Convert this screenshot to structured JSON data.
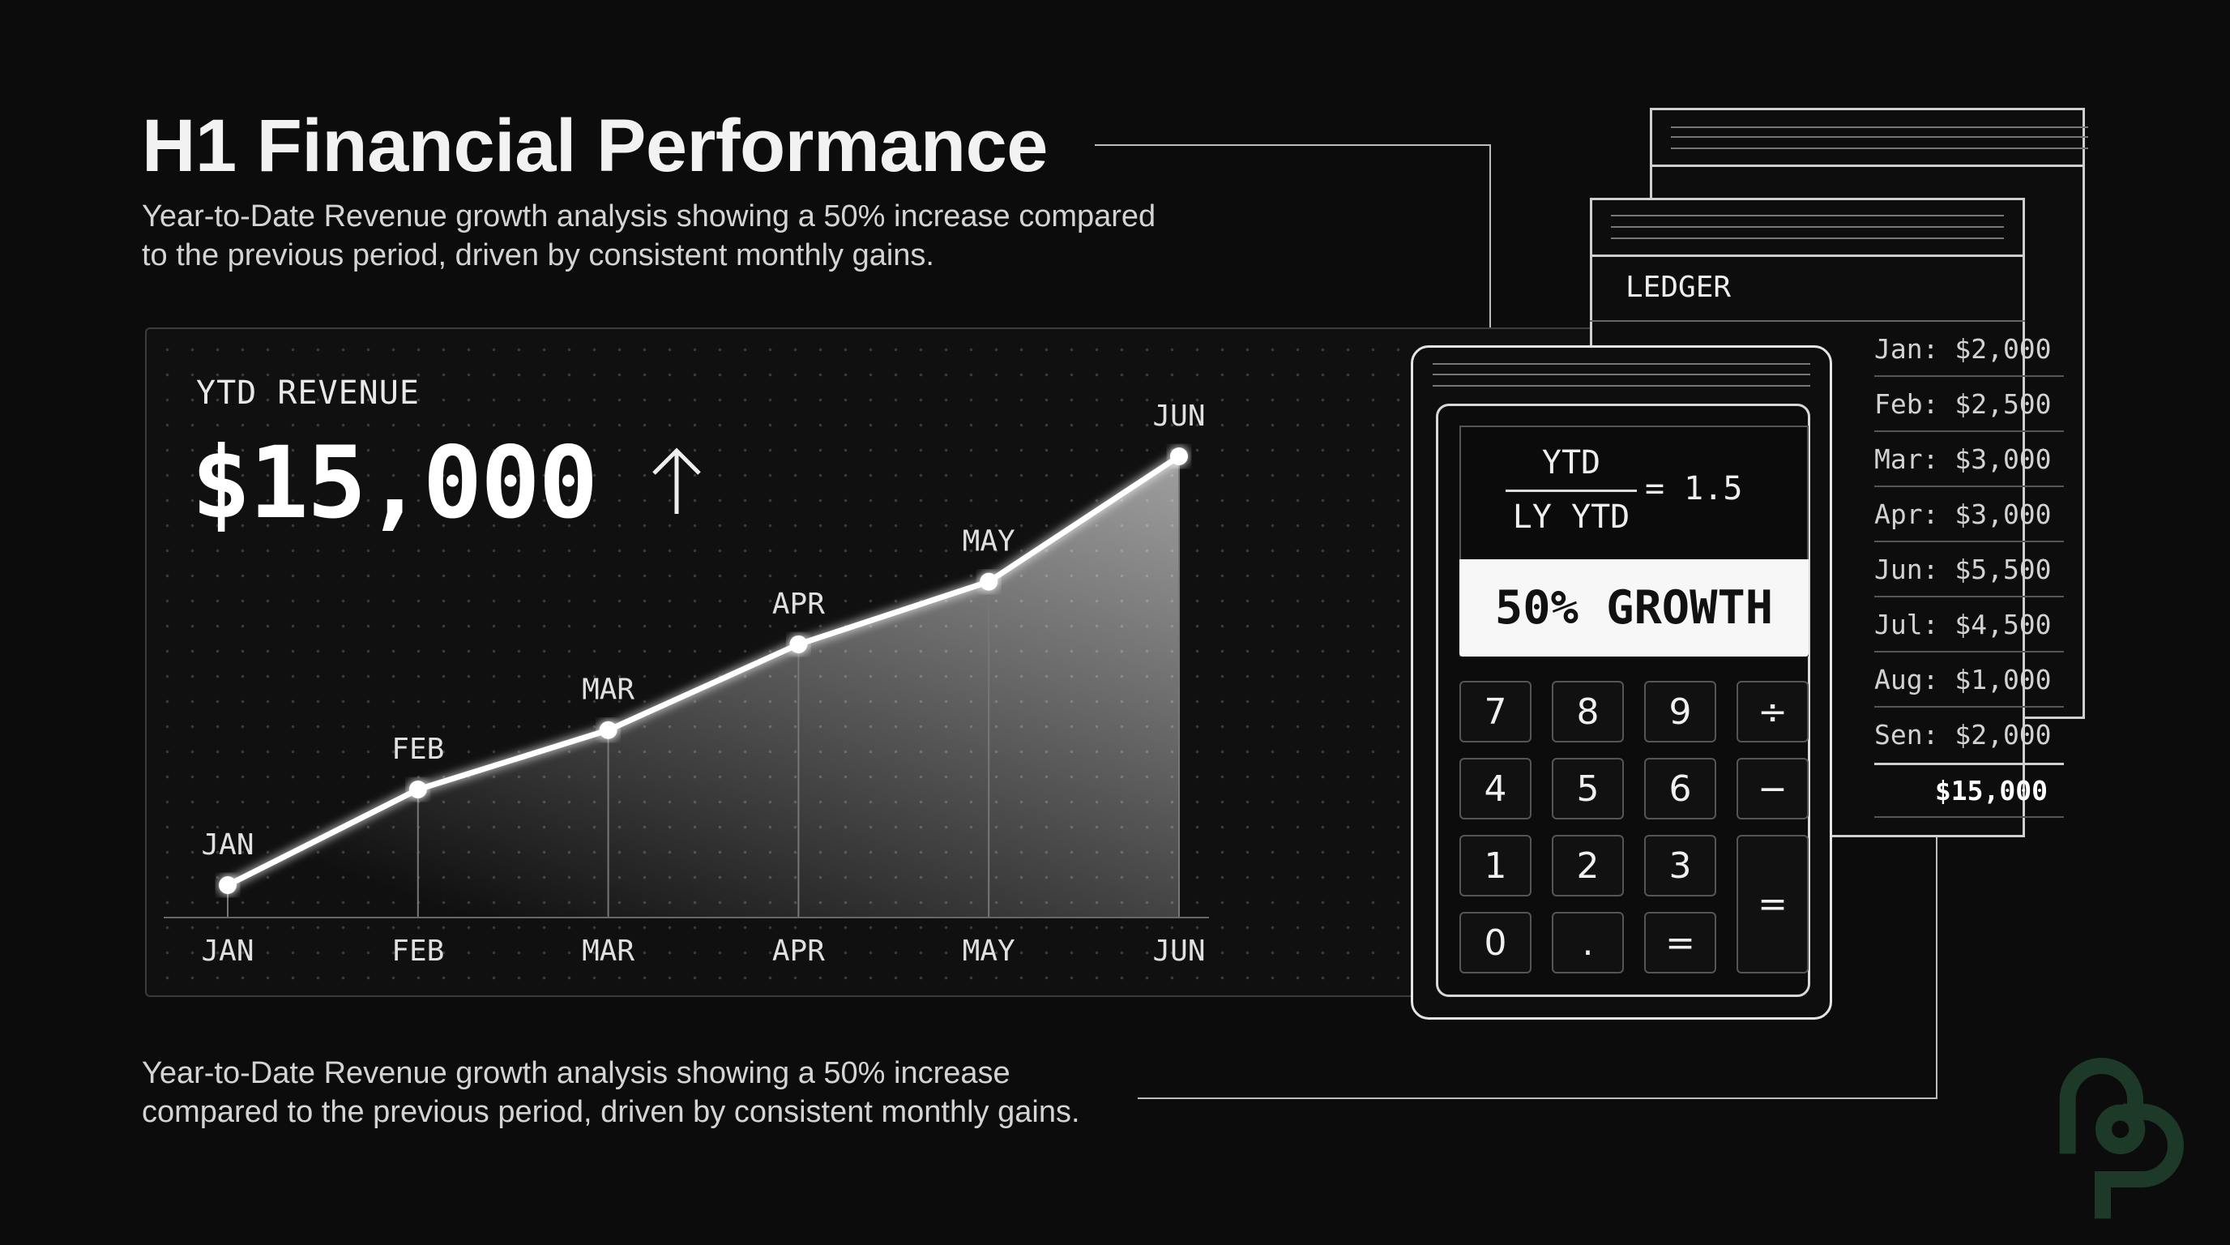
{
  "header": {
    "title": "H1 Financial Performance",
    "subtitle_lines": [
      "Year-to-Date Revenue growth analysis showing a 50% increase compared",
      "to the previous period, driven by consistent monthly gains."
    ]
  },
  "caption_lines": [
    "Year-to-Date Revenue growth analysis showing a 50% increase",
    "compared to the previous period, driven by consistent monthly gains."
  ],
  "kpi": {
    "label": "YTD REVENUE",
    "value": "$15,000",
    "trend_icon": "arrow-up-icon"
  },
  "chart_data": {
    "type": "line",
    "title": "",
    "xlabel": "",
    "ylabel": "",
    "categories": [
      "JAN",
      "FEB",
      "MAR",
      "APR",
      "MAY",
      "JUN"
    ],
    "series": [
      {
        "values": [
          2000,
          4900,
          6700,
          9300,
          11200,
          15000
        ]
      }
    ],
    "point_labels": [
      "JAN",
      "FEB",
      "MAR",
      "APR",
      "MAY",
      "JUN"
    ],
    "ylim": [
      2000,
      15000
    ],
    "grid": false,
    "area_fill": true,
    "line_color": "#ffffff"
  },
  "calculator": {
    "numerator": "YTD",
    "denominator": "LY YTD",
    "result": "= 1.5",
    "growth": "50% GROWTH",
    "keys": [
      "7",
      "8",
      "9",
      "÷",
      "4",
      "5",
      "6",
      "−",
      "1",
      "2",
      "3",
      "=",
      "0",
      ".",
      "="
    ]
  },
  "ledger": {
    "title": "LEDGER",
    "rows": [
      "Jan: $2,000",
      "Feb: $2,500",
      "Mar: $3,000",
      "Apr: $3,000",
      "Jun: $5,500",
      "Jul: $4,500",
      "Aug: $1,000",
      "Sen: $2,000"
    ],
    "total": "$15,000"
  },
  "colors": {
    "background": "#0c0c0d",
    "foreground": "#f2f2f2",
    "logo": "#1d3a29"
  }
}
